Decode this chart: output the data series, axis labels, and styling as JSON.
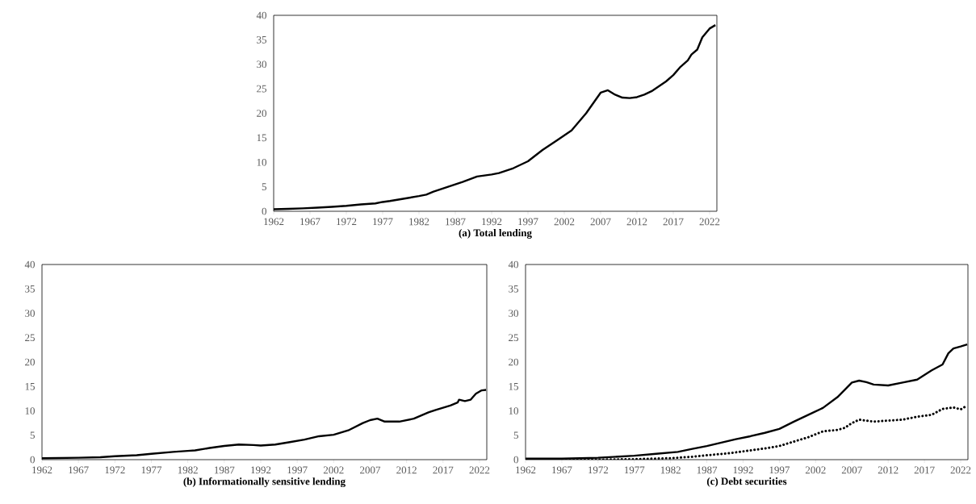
{
  "chart_data": [
    {
      "type": "line",
      "xlabel": "(a) Total lending",
      "color": "#000000",
      "line_style": "solid",
      "x": [
        1962,
        1964,
        1966,
        1968,
        1970,
        1972,
        1974,
        1976,
        1977,
        1978,
        1980,
        1982,
        1983,
        1984,
        1986,
        1988,
        1990,
        1992,
        1993,
        1995,
        1997,
        1999,
        2001,
        2003,
        2005,
        2007,
        2008,
        2009,
        2010,
        2011,
        2012,
        2013,
        2014,
        2015,
        2016,
        2017,
        2018,
        2019,
        2019.5,
        2020.3,
        2021,
        2022,
        2022.8
      ],
      "values": [
        0.4,
        0.5,
        0.6,
        0.75,
        0.9,
        1.1,
        1.4,
        1.6,
        1.9,
        2.1,
        2.6,
        3.1,
        3.4,
        4.0,
        5.0,
        6.0,
        7.1,
        7.5,
        7.8,
        8.8,
        10.2,
        12.5,
        14.5,
        16.5,
        20.0,
        24.2,
        24.7,
        23.8,
        23.2,
        23.1,
        23.3,
        23.8,
        24.5,
        25.5,
        26.5,
        27.8,
        29.5,
        30.8,
        32,
        33,
        35.5,
        37.3,
        38.0
      ],
      "xlim": [
        1962,
        2023
      ],
      "ylim": [
        0,
        40
      ],
      "xticks": [
        1962,
        1967,
        1972,
        1977,
        1982,
        1987,
        1992,
        1997,
        2002,
        2007,
        2012,
        2017,
        2022
      ],
      "yticks": [
        0,
        5,
        10,
        15,
        20,
        25,
        30,
        35,
        40
      ]
    },
    {
      "type": "line",
      "xlabel": "(b) Informationally sensitive lending",
      "color": "#000000",
      "line_style": "solid",
      "x": [
        1962,
        1967,
        1970,
        1972,
        1975,
        1977,
        1980,
        1982,
        1983,
        1985,
        1987,
        1989,
        1991,
        1992,
        1994,
        1996,
        1998,
        2000,
        2002,
        2004,
        2006,
        2007,
        2008,
        2009,
        2011,
        2013,
        2015,
        2016,
        2018,
        2019,
        2019.2,
        2020,
        2020.8,
        2021.5,
        2022.3,
        2022.9
      ],
      "values": [
        0.3,
        0.4,
        0.5,
        0.7,
        0.9,
        1.2,
        1.6,
        1.8,
        1.9,
        2.4,
        2.8,
        3.1,
        3.0,
        2.9,
        3.1,
        3.6,
        4.1,
        4.8,
        5.1,
        6.0,
        7.5,
        8.1,
        8.4,
        7.8,
        7.8,
        8.4,
        9.7,
        10.2,
        11.1,
        11.7,
        12.3,
        12.0,
        12.3,
        13.5,
        14.2,
        14.3
      ],
      "xlim": [
        1962,
        2023
      ],
      "ylim": [
        0,
        40
      ],
      "xticks": [
        1962,
        1967,
        1972,
        1977,
        1982,
        1987,
        1992,
        1997,
        2002,
        2007,
        2012,
        2017,
        2022
      ],
      "yticks": [
        0,
        5,
        10,
        15,
        20,
        25,
        30,
        35,
        40
      ]
    },
    {
      "type": "line",
      "xlabel": "(c) Debt securities",
      "series": [
        {
          "color": "#000000",
          "line_style": "solid",
          "x": [
            1962,
            1967,
            1972,
            1977,
            1980,
            1983,
            1985,
            1987,
            1989,
            1991,
            1993,
            1995,
            1997,
            1999,
            2001,
            2003,
            2005,
            2007,
            2008,
            2009,
            2010,
            2012,
            2014,
            2016,
            2018,
            2019.5,
            2020.3,
            2021,
            2022,
            2022.9
          ],
          "values": [
            0.2,
            0.2,
            0.4,
            0.8,
            1.2,
            1.6,
            2.2,
            2.8,
            3.5,
            4.2,
            4.8,
            5.5,
            6.3,
            7.8,
            9.2,
            10.6,
            12.8,
            15.8,
            16.2,
            15.9,
            15.4,
            15.2,
            15.8,
            16.4,
            18.3,
            19.5,
            21.8,
            22.8,
            23.2,
            23.6
          ]
        },
        {
          "color": "#000000",
          "line_style": "dotted",
          "x": [
            1962,
            1972,
            1977,
            1982,
            1985,
            1987,
            1990,
            1993,
            1995,
            1997,
            1999,
            2001,
            2003,
            2005,
            2006,
            2007,
            2008,
            2009,
            2010,
            2012,
            2014,
            2016,
            2018,
            2019.5,
            2021,
            2022,
            2022.9
          ],
          "values": [
            0,
            0,
            0.1,
            0.3,
            0.6,
            0.9,
            1.3,
            1.9,
            2.3,
            2.8,
            3.7,
            4.6,
            5.8,
            6.1,
            6.5,
            7.5,
            8.2,
            8.0,
            7.8,
            8.0,
            8.2,
            8.8,
            9.2,
            10.4,
            10.7,
            10.3,
            11.1
          ]
        }
      ],
      "xlim": [
        1962,
        2023
      ],
      "ylim": [
        0,
        40
      ],
      "xticks": [
        1962,
        1967,
        1972,
        1977,
        1982,
        1987,
        1992,
        1997,
        2002,
        2007,
        2012,
        2017,
        2022
      ],
      "yticks": [
        0,
        5,
        10,
        15,
        20,
        25,
        30,
        35,
        40
      ]
    }
  ]
}
